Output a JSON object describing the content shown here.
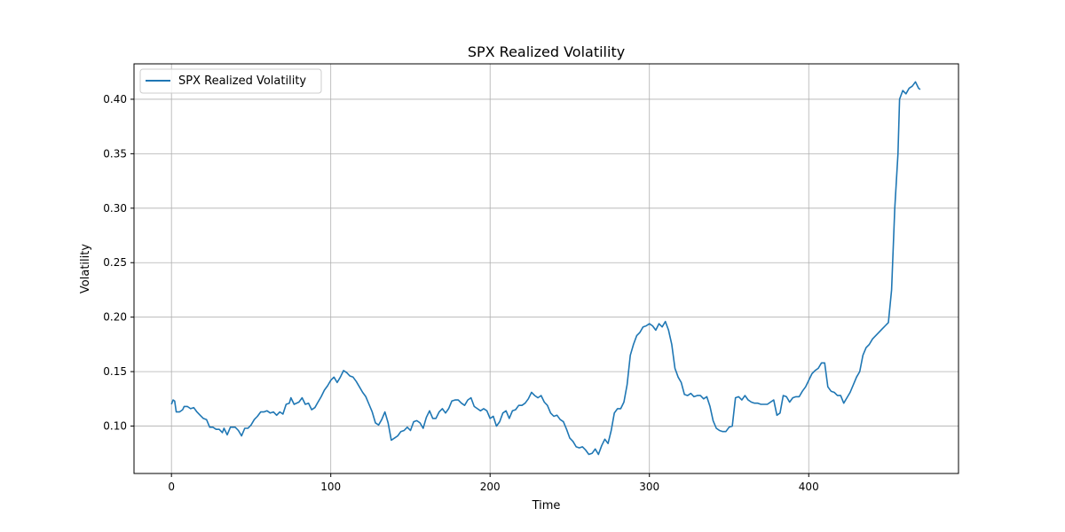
{
  "chart_data": {
    "type": "line",
    "title": "SPX Realized Volatility",
    "xlabel": "Time",
    "ylabel": "Volatility",
    "xlim": [
      -23.5,
      494
    ],
    "ylim": [
      0.0565,
      0.4325
    ],
    "xticks": [
      0,
      100,
      200,
      300,
      400
    ],
    "yticks": [
      0.1,
      0.15,
      0.2,
      0.25,
      0.3,
      0.35,
      0.4
    ],
    "ytick_labels": [
      "0.10",
      "0.15",
      "0.20",
      "0.25",
      "0.30",
      "0.35",
      "0.40"
    ],
    "grid": true,
    "legend": "upper-left",
    "series": [
      {
        "name": "SPX Realized Volatility",
        "color": "#1f77b4",
        "points": [
          [
            0,
            0.12
          ],
          [
            1,
            0.124
          ],
          [
            2,
            0.123
          ],
          [
            3,
            0.113
          ],
          [
            5,
            0.113
          ],
          [
            7,
            0.115
          ],
          [
            8,
            0.118
          ],
          [
            10,
            0.118
          ],
          [
            12,
            0.116
          ],
          [
            14,
            0.117
          ],
          [
            16,
            0.113
          ],
          [
            18,
            0.11
          ],
          [
            20,
            0.107
          ],
          [
            22,
            0.106
          ],
          [
            24,
            0.099
          ],
          [
            26,
            0.099
          ],
          [
            28,
            0.097
          ],
          [
            30,
            0.097
          ],
          [
            32,
            0.094
          ],
          [
            33,
            0.098
          ],
          [
            35,
            0.092
          ],
          [
            37,
            0.099
          ],
          [
            40,
            0.099
          ],
          [
            42,
            0.096
          ],
          [
            44,
            0.091
          ],
          [
            46,
            0.098
          ],
          [
            48,
            0.098
          ],
          [
            50,
            0.101
          ],
          [
            52,
            0.106
          ],
          [
            54,
            0.109
          ],
          [
            56,
            0.113
          ],
          [
            58,
            0.113
          ],
          [
            60,
            0.114
          ],
          [
            62,
            0.112
          ],
          [
            64,
            0.113
          ],
          [
            66,
            0.11
          ],
          [
            68,
            0.113
          ],
          [
            70,
            0.111
          ],
          [
            72,
            0.12
          ],
          [
            74,
            0.121
          ],
          [
            75,
            0.126
          ],
          [
            77,
            0.12
          ],
          [
            80,
            0.122
          ],
          [
            82,
            0.126
          ],
          [
            84,
            0.12
          ],
          [
            86,
            0.121
          ],
          [
            88,
            0.115
          ],
          [
            90,
            0.117
          ],
          [
            92,
            0.122
          ],
          [
            94,
            0.127
          ],
          [
            96,
            0.133
          ],
          [
            98,
            0.137
          ],
          [
            100,
            0.142
          ],
          [
            102,
            0.145
          ],
          [
            104,
            0.14
          ],
          [
            106,
            0.145
          ],
          [
            108,
            0.151
          ],
          [
            110,
            0.149
          ],
          [
            112,
            0.146
          ],
          [
            114,
            0.145
          ],
          [
            116,
            0.141
          ],
          [
            118,
            0.136
          ],
          [
            120,
            0.131
          ],
          [
            122,
            0.127
          ],
          [
            124,
            0.12
          ],
          [
            126,
            0.113
          ],
          [
            128,
            0.103
          ],
          [
            130,
            0.101
          ],
          [
            132,
            0.106
          ],
          [
            134,
            0.113
          ],
          [
            136,
            0.103
          ],
          [
            138,
            0.087
          ],
          [
            140,
            0.089
          ],
          [
            142,
            0.091
          ],
          [
            144,
            0.095
          ],
          [
            146,
            0.096
          ],
          [
            148,
            0.099
          ],
          [
            150,
            0.096
          ],
          [
            152,
            0.104
          ],
          [
            154,
            0.105
          ],
          [
            156,
            0.103
          ],
          [
            158,
            0.098
          ],
          [
            160,
            0.108
          ],
          [
            162,
            0.114
          ],
          [
            164,
            0.107
          ],
          [
            166,
            0.107
          ],
          [
            168,
            0.113
          ],
          [
            170,
            0.116
          ],
          [
            172,
            0.112
          ],
          [
            174,
            0.116
          ],
          [
            176,
            0.123
          ],
          [
            178,
            0.124
          ],
          [
            180,
            0.124
          ],
          [
            182,
            0.121
          ],
          [
            184,
            0.119
          ],
          [
            186,
            0.124
          ],
          [
            188,
            0.126
          ],
          [
            190,
            0.118
          ],
          [
            192,
            0.116
          ],
          [
            194,
            0.114
          ],
          [
            196,
            0.116
          ],
          [
            198,
            0.114
          ],
          [
            200,
            0.107
          ],
          [
            202,
            0.109
          ],
          [
            204,
            0.1
          ],
          [
            206,
            0.104
          ],
          [
            208,
            0.112
          ],
          [
            210,
            0.114
          ],
          [
            212,
            0.107
          ],
          [
            214,
            0.114
          ],
          [
            216,
            0.115
          ],
          [
            218,
            0.119
          ],
          [
            220,
            0.119
          ],
          [
            222,
            0.121
          ],
          [
            224,
            0.125
          ],
          [
            226,
            0.131
          ],
          [
            228,
            0.128
          ],
          [
            230,
            0.126
          ],
          [
            232,
            0.128
          ],
          [
            234,
            0.122
          ],
          [
            236,
            0.119
          ],
          [
            238,
            0.112
          ],
          [
            240,
            0.109
          ],
          [
            242,
            0.11
          ],
          [
            244,
            0.106
          ],
          [
            246,
            0.104
          ],
          [
            248,
            0.097
          ],
          [
            250,
            0.089
          ],
          [
            252,
            0.086
          ],
          [
            254,
            0.081
          ],
          [
            256,
            0.08
          ],
          [
            258,
            0.081
          ],
          [
            260,
            0.078
          ],
          [
            262,
            0.074
          ],
          [
            264,
            0.075
          ],
          [
            266,
            0.079
          ],
          [
            268,
            0.074
          ],
          [
            270,
            0.082
          ],
          [
            272,
            0.088
          ],
          [
            274,
            0.084
          ],
          [
            276,
            0.096
          ],
          [
            278,
            0.112
          ],
          [
            280,
            0.116
          ],
          [
            282,
            0.116
          ],
          [
            284,
            0.122
          ],
          [
            286,
            0.138
          ],
          [
            288,
            0.165
          ],
          [
            290,
            0.175
          ],
          [
            292,
            0.183
          ],
          [
            294,
            0.186
          ],
          [
            296,
            0.191
          ],
          [
            298,
            0.192
          ],
          [
            300,
            0.194
          ],
          [
            302,
            0.192
          ],
          [
            304,
            0.188
          ],
          [
            306,
            0.194
          ],
          [
            308,
            0.191
          ],
          [
            310,
            0.196
          ],
          [
            312,
            0.188
          ],
          [
            314,
            0.175
          ],
          [
            316,
            0.153
          ],
          [
            318,
            0.145
          ],
          [
            320,
            0.14
          ],
          [
            322,
            0.129
          ],
          [
            324,
            0.128
          ],
          [
            326,
            0.13
          ],
          [
            328,
            0.127
          ],
          [
            330,
            0.128
          ],
          [
            332,
            0.128
          ],
          [
            334,
            0.125
          ],
          [
            336,
            0.127
          ],
          [
            338,
            0.118
          ],
          [
            340,
            0.105
          ],
          [
            342,
            0.098
          ],
          [
            344,
            0.096
          ],
          [
            346,
            0.095
          ],
          [
            348,
            0.095
          ],
          [
            350,
            0.099
          ],
          [
            352,
            0.1
          ],
          [
            354,
            0.126
          ],
          [
            356,
            0.127
          ],
          [
            358,
            0.124
          ],
          [
            360,
            0.128
          ],
          [
            362,
            0.124
          ],
          [
            364,
            0.122
          ],
          [
            366,
            0.121
          ],
          [
            368,
            0.121
          ],
          [
            370,
            0.12
          ],
          [
            372,
            0.12
          ],
          [
            374,
            0.12
          ],
          [
            376,
            0.122
          ],
          [
            378,
            0.124
          ],
          [
            380,
            0.11
          ],
          [
            382,
            0.112
          ],
          [
            384,
            0.128
          ],
          [
            386,
            0.127
          ],
          [
            388,
            0.122
          ],
          [
            390,
            0.126
          ],
          [
            392,
            0.127
          ],
          [
            394,
            0.127
          ],
          [
            396,
            0.132
          ],
          [
            398,
            0.136
          ],
          [
            400,
            0.142
          ],
          [
            402,
            0.148
          ],
          [
            404,
            0.151
          ],
          [
            406,
            0.153
          ],
          [
            408,
            0.158
          ],
          [
            410,
            0.158
          ],
          [
            412,
            0.136
          ],
          [
            414,
            0.132
          ],
          [
            416,
            0.131
          ],
          [
            418,
            0.128
          ],
          [
            420,
            0.128
          ],
          [
            422,
            0.121
          ],
          [
            424,
            0.126
          ],
          [
            426,
            0.131
          ],
          [
            428,
            0.138
          ],
          [
            430,
            0.145
          ],
          [
            432,
            0.15
          ],
          [
            434,
            0.165
          ],
          [
            436,
            0.172
          ],
          [
            438,
            0.175
          ],
          [
            440,
            0.18
          ],
          [
            442,
            0.183
          ],
          [
            444,
            0.186
          ],
          [
            446,
            0.189
          ],
          [
            448,
            0.192
          ],
          [
            450,
            0.195
          ],
          [
            452,
            0.225
          ],
          [
            454,
            0.3
          ],
          [
            456,
            0.35
          ],
          [
            457,
            0.4
          ],
          [
            459,
            0.408
          ],
          [
            461,
            0.405
          ],
          [
            463,
            0.41
          ],
          [
            465,
            0.412
          ],
          [
            467,
            0.416
          ],
          [
            469,
            0.41
          ],
          [
            470,
            0.409
          ]
        ]
      }
    ]
  }
}
